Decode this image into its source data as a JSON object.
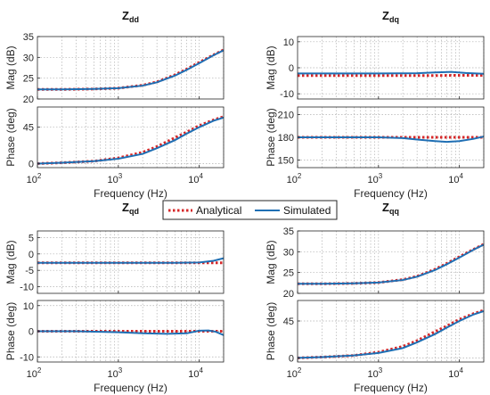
{
  "legend": {
    "entries": [
      {
        "name": "Analytical",
        "color": "#d62728",
        "style": "dotted"
      },
      {
        "name": "Simulated",
        "color": "#1f6fb4",
        "style": "solid"
      }
    ]
  },
  "colors": {
    "analytical": "#d62728",
    "simulated": "#1f6fb4",
    "grid": "#b0b0b0",
    "axis": "#262626"
  },
  "chart_data": [
    {
      "type": "line",
      "id": "zdd-mag",
      "title_main": "Z",
      "title_sub": "dd",
      "xlabel": "",
      "ylabel": "Mag (dB)",
      "xscale": "log",
      "xlim": [
        100,
        20000
      ],
      "ylim": [
        20,
        35
      ],
      "yticks": [
        20,
        25,
        30,
        35
      ],
      "grid": true,
      "series": [
        {
          "name": "Analytical",
          "x": [
            100,
            200,
            500,
            1000,
            2000,
            3000,
            5000,
            7000,
            10000,
            15000,
            20000
          ],
          "y": [
            22.3,
            22.3,
            22.4,
            22.6,
            23.3,
            24.1,
            25.8,
            27.2,
            28.8,
            30.6,
            31.8
          ]
        },
        {
          "name": "Simulated",
          "x": [
            100,
            200,
            500,
            1000,
            2000,
            3000,
            5000,
            7000,
            10000,
            15000,
            20000
          ],
          "y": [
            22.3,
            22.3,
            22.4,
            22.6,
            23.2,
            24.0,
            25.6,
            27.0,
            28.6,
            30.5,
            31.7
          ]
        }
      ]
    },
    {
      "type": "line",
      "id": "zdd-phase",
      "xlabel": "Frequency  (Hz)",
      "ylabel": "Phase (deg)",
      "xscale": "log",
      "xlim": [
        100,
        20000
      ],
      "ylim": [
        -5,
        70
      ],
      "yticks": [
        0,
        45
      ],
      "xticks": [
        "10^2",
        "10^3",
        "10^4"
      ],
      "grid": true,
      "series": [
        {
          "name": "Analytical",
          "x": [
            100,
            200,
            500,
            1000,
            2000,
            3000,
            5000,
            7000,
            10000,
            15000,
            20000
          ],
          "y": [
            0,
            1,
            3,
            7,
            14,
            21,
            32,
            39,
            47,
            54,
            58
          ]
        },
        {
          "name": "Simulated",
          "x": [
            100,
            200,
            500,
            1000,
            2000,
            3000,
            5000,
            7000,
            10000,
            15000,
            20000
          ],
          "y": [
            0,
            1,
            3,
            6,
            12,
            19,
            29,
            37,
            45,
            53,
            57
          ]
        }
      ]
    },
    {
      "type": "line",
      "id": "zdq-mag",
      "title_main": "Z",
      "title_sub": "dq",
      "xlabel": "",
      "ylabel": "Mag (dB)",
      "xscale": "log",
      "xlim": [
        100,
        20000
      ],
      "ylim": [
        -12,
        12
      ],
      "yticks": [
        -10,
        0,
        10
      ],
      "grid": true,
      "series": [
        {
          "name": "Analytical",
          "x": [
            100,
            1000,
            5000,
            10000,
            20000
          ],
          "y": [
            -3.0,
            -3.0,
            -3.0,
            -2.9,
            -2.9
          ]
        },
        {
          "name": "Simulated",
          "x": [
            100,
            1000,
            3000,
            5000,
            8000,
            12000,
            20000
          ],
          "y": [
            -2.2,
            -2.2,
            -2.1,
            -1.8,
            -1.6,
            -2.0,
            -2.3
          ]
        }
      ]
    },
    {
      "type": "line",
      "id": "zdq-phase",
      "xlabel": "Frequency  (Hz)",
      "ylabel": "Phase (deg)",
      "xscale": "log",
      "xlim": [
        100,
        20000
      ],
      "ylim": [
        140,
        220
      ],
      "yticks": [
        150,
        180,
        210
      ],
      "xticks": [
        "10^2",
        "10^3",
        "10^4"
      ],
      "grid": true,
      "series": [
        {
          "name": "Analytical",
          "x": [
            100,
            1000,
            5000,
            10000,
            20000
          ],
          "y": [
            180,
            180,
            180,
            180,
            180
          ]
        },
        {
          "name": "Simulated",
          "x": [
            100,
            1000,
            2000,
            3000,
            5000,
            7000,
            10000,
            15000,
            20000
          ],
          "y": [
            180,
            180,
            179,
            177,
            175,
            174,
            175,
            178,
            181
          ]
        }
      ]
    },
    {
      "type": "line",
      "id": "zqd-mag",
      "title_main": "Z",
      "title_sub": "qd",
      "xlabel": "",
      "ylabel": "Mag (dB)",
      "xscale": "log",
      "xlim": [
        100,
        20000
      ],
      "ylim": [
        -12,
        7
      ],
      "yticks": [
        -10,
        -5,
        0,
        5
      ],
      "grid": true,
      "series": [
        {
          "name": "Analytical",
          "x": [
            100,
            1000,
            5000,
            10000,
            20000
          ],
          "y": [
            -2.7,
            -2.7,
            -2.7,
            -2.7,
            -2.7
          ]
        },
        {
          "name": "Simulated",
          "x": [
            100,
            1000,
            5000,
            10000,
            15000,
            20000
          ],
          "y": [
            -2.7,
            -2.7,
            -2.7,
            -2.6,
            -2.1,
            -1.3
          ]
        }
      ]
    },
    {
      "type": "line",
      "id": "zqd-phase",
      "xlabel": "Frequency  (Hz)",
      "ylabel": "Phase (deg)",
      "xscale": "log",
      "xlim": [
        100,
        20000
      ],
      "ylim": [
        -12,
        12
      ],
      "yticks": [
        -10,
        0,
        10
      ],
      "xticks": [
        "10^2",
        "10^3",
        "10^4"
      ],
      "grid": true,
      "series": [
        {
          "name": "Analytical",
          "x": [
            100,
            1000,
            5000,
            10000,
            20000
          ],
          "y": [
            0,
            0,
            0,
            0,
            0
          ]
        },
        {
          "name": "Simulated",
          "x": [
            100,
            300,
            1000,
            2000,
            4000,
            7000,
            10000,
            13000,
            16000,
            20000
          ],
          "y": [
            0,
            0,
            -0.4,
            -0.8,
            -1.0,
            -0.8,
            0.2,
            0.3,
            -0.2,
            -1.5
          ]
        }
      ]
    },
    {
      "type": "line",
      "id": "zqq-mag",
      "title_main": "Z",
      "title_sub": "qq",
      "xlabel": "",
      "ylabel": "Mag (dB)",
      "xscale": "log",
      "xlim": [
        100,
        20000
      ],
      "ylim": [
        20,
        35
      ],
      "yticks": [
        20,
        25,
        30,
        35
      ],
      "grid": true,
      "series": [
        {
          "name": "Analytical",
          "x": [
            100,
            200,
            500,
            1000,
            2000,
            3000,
            5000,
            7000,
            10000,
            15000,
            20000
          ],
          "y": [
            22.3,
            22.3,
            22.4,
            22.6,
            23.3,
            24.1,
            25.8,
            27.2,
            28.8,
            30.6,
            31.8
          ]
        },
        {
          "name": "Simulated",
          "x": [
            100,
            200,
            500,
            1000,
            2000,
            3000,
            5000,
            7000,
            10000,
            15000,
            20000
          ],
          "y": [
            22.3,
            22.3,
            22.4,
            22.6,
            23.2,
            24.0,
            25.6,
            27.0,
            28.6,
            30.5,
            31.7
          ]
        }
      ]
    },
    {
      "type": "line",
      "id": "zqq-phase",
      "xlabel": "Frequency  (Hz)",
      "ylabel": "Phase (deg)",
      "xscale": "log",
      "xlim": [
        100,
        20000
      ],
      "ylim": [
        -5,
        70
      ],
      "yticks": [
        0,
        45
      ],
      "xticks": [
        "10^2",
        "10^3",
        "10^4"
      ],
      "grid": true,
      "series": [
        {
          "name": "Analytical",
          "x": [
            100,
            200,
            500,
            1000,
            2000,
            3000,
            5000,
            7000,
            10000,
            15000,
            20000
          ],
          "y": [
            0,
            1,
            3,
            7,
            14,
            21,
            32,
            39,
            47,
            54,
            58
          ]
        },
        {
          "name": "Simulated",
          "x": [
            100,
            200,
            500,
            1000,
            2000,
            3000,
            5000,
            7000,
            10000,
            15000,
            20000
          ],
          "y": [
            0,
            1,
            3,
            6,
            12,
            19,
            29,
            37,
            45,
            53,
            57
          ]
        }
      ]
    }
  ]
}
